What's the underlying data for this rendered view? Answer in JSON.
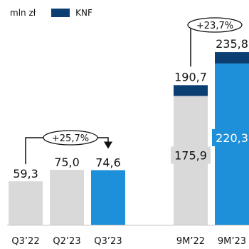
{
  "legend": {
    "unit": "mln zł",
    "series": "KNF"
  },
  "colors": {
    "grey": "#d9d9d9",
    "highlight": "#1e90d9",
    "knf": "#0c3f71",
    "text": "#111111",
    "axis": "#bfbfbf"
  },
  "chart_data": [
    {
      "type": "bar",
      "categories": [
        "Q3’22",
        "Q2’23",
        "Q3’23"
      ],
      "values": [
        59.3,
        75.0,
        74.6
      ],
      "value_labels": [
        "59,3",
        "75,0",
        "74,6"
      ],
      "change_label": "+25,7%",
      "highlight_index": 2
    },
    {
      "type": "bar",
      "categories": [
        "9M’22",
        "9M’23"
      ],
      "totals": [
        190.7,
        235.8
      ],
      "total_labels": [
        "190,7",
        "235,8"
      ],
      "base_values": [
        175.9,
        220.3
      ],
      "base_labels": [
        "175,9",
        "220,3"
      ],
      "series": [
        {
          "name": "KNF",
          "values": [
            14.8,
            15.5
          ]
        }
      ],
      "change_label": "+23,7%",
      "highlight_index": 1
    }
  ]
}
